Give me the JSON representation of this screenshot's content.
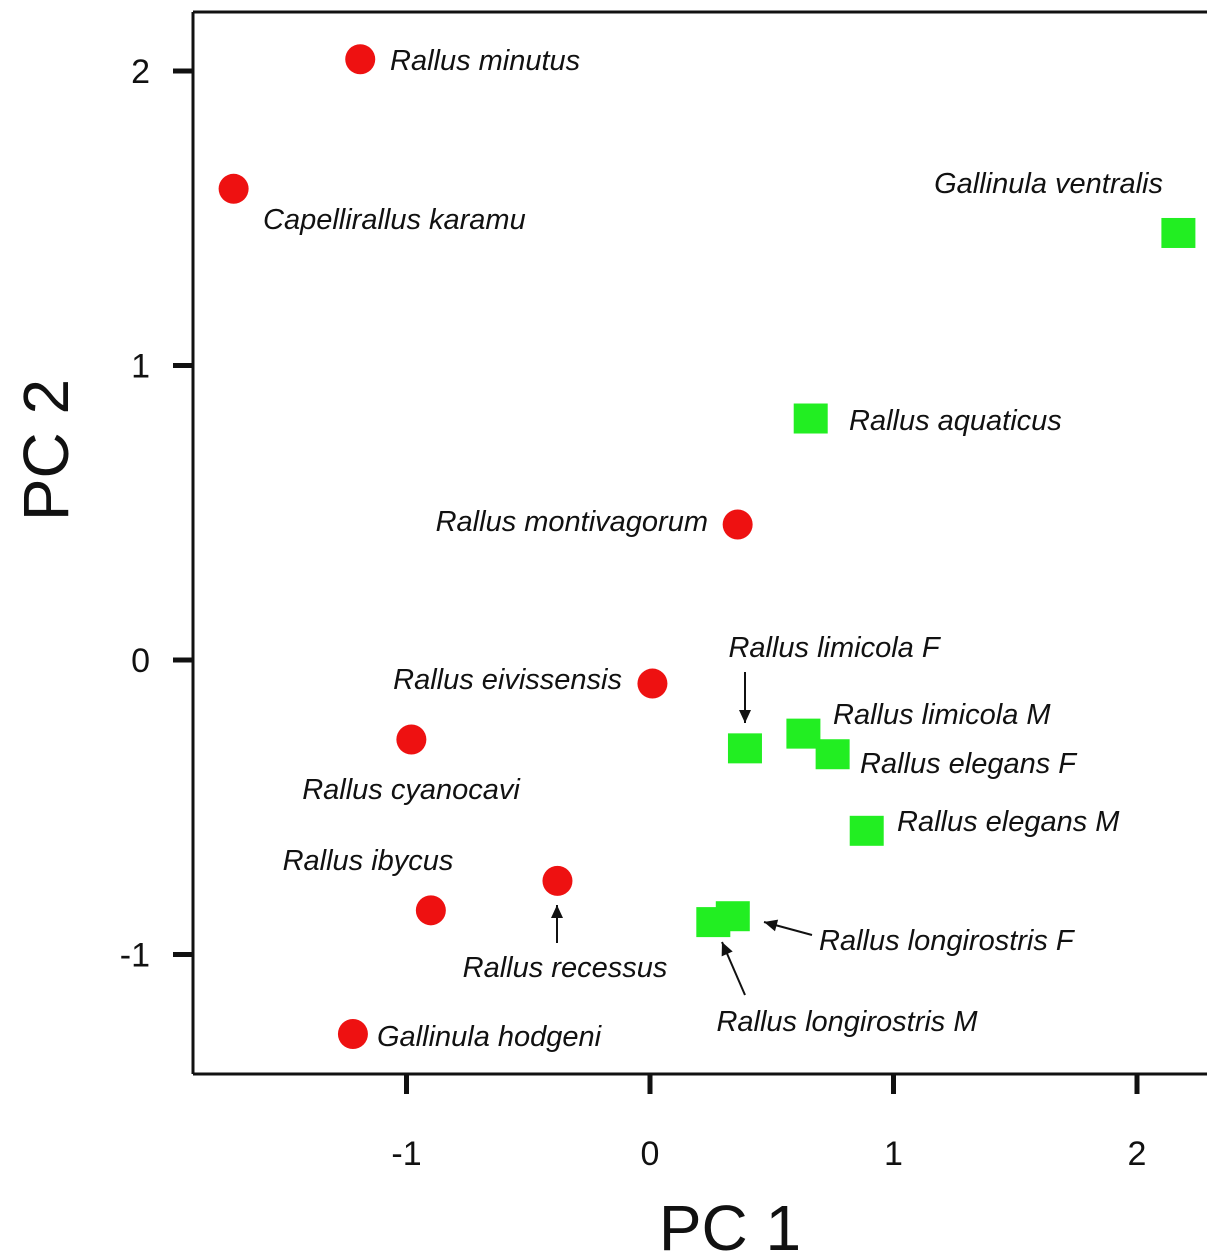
{
  "chart_data": {
    "type": "scatter",
    "xlabel": "PC 1",
    "ylabel": "PC 2",
    "xlim": [
      -1.86,
      2.22
    ],
    "ylim": [
      -1.41,
      2.2
    ],
    "x_ticks": [
      -1,
      0,
      1,
      2
    ],
    "y_ticks": [
      -1,
      0,
      1,
      2
    ],
    "x_tick_labels": [
      "-1",
      "0",
      "1",
      "2"
    ],
    "y_tick_labels": [
      "-1",
      "0",
      "1",
      "2"
    ],
    "grid": false,
    "series": [
      {
        "marker": "circle",
        "color": "#ee1111",
        "points": [
          {
            "label": "Rallus minutus",
            "x": -1.19,
            "y": 2.04
          },
          {
            "label": "Capellirallus karamu",
            "x": -1.71,
            "y": 1.6
          },
          {
            "label": "Rallus montivagorum",
            "x": 0.36,
            "y": 0.46
          },
          {
            "label": "Rallus eivissensis",
            "x": 0.01,
            "y": -0.08
          },
          {
            "label": "Rallus cyanocavi",
            "x": -0.98,
            "y": -0.27
          },
          {
            "label": "Rallus ibycus",
            "x": -0.9,
            "y": -0.85
          },
          {
            "label": "Rallus recessus",
            "x": -0.38,
            "y": -0.75
          },
          {
            "label": "Gallinula hodgeni",
            "x": -1.22,
            "y": -1.27
          }
        ]
      },
      {
        "marker": "square",
        "color": "#22ee22",
        "points": [
          {
            "label": "Gallinula ventralis",
            "x": 2.17,
            "y": 1.45
          },
          {
            "label": "Rallus aquaticus",
            "x": 0.66,
            "y": 0.82
          },
          {
            "label": "Rallus limicola F",
            "x": 0.39,
            "y": -0.3
          },
          {
            "label": "Rallus limicola M",
            "x": 0.63,
            "y": -0.25
          },
          {
            "label": "Rallus elegans F",
            "x": 0.75,
            "y": -0.32
          },
          {
            "label": "Rallus elegans M",
            "x": 0.89,
            "y": -0.58
          },
          {
            "label": "Rallus longirostris F",
            "x": 0.34,
            "y": -0.87
          },
          {
            "label": "Rallus longirostris M",
            "x": 0.26,
            "y": -0.89
          }
        ]
      }
    ]
  }
}
